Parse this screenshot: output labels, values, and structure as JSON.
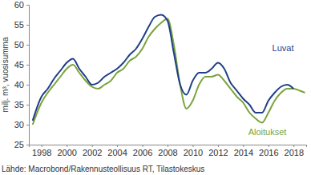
{
  "chart_data": {
    "type": "line",
    "y_label": "milj. m³, vuosisumma",
    "source": "Lähde: Macrobond/Rakennusteollisuus RT, Tilastokeskus",
    "x": [
      1997.3,
      1998,
      1998.5,
      1999,
      1999.5,
      2000,
      2000.5,
      2001,
      2001.5,
      2002,
      2002.5,
      2003,
      2003.5,
      2004,
      2004.5,
      2005,
      2005.5,
      2006,
      2006.5,
      2007,
      2007.5,
      2008,
      2008.5,
      2009,
      2009.5,
      2010,
      2010.5,
      2011,
      2011.5,
      2012,
      2012.5,
      2013,
      2013.5,
      2014,
      2014.5,
      2015,
      2015.5,
      2016,
      2016.5,
      2017,
      2017.5,
      2018,
      2018.5,
      2018.9
    ],
    "series": [
      {
        "name": "Luvat",
        "color": "#1f3f86",
        "values": [
          31,
          37,
          39,
          41.5,
          43.5,
          45.5,
          46.5,
          44,
          42,
          40,
          40.5,
          42,
          43,
          44,
          45.5,
          47.5,
          49,
          51.5,
          54.5,
          57,
          57.5,
          56,
          48,
          40,
          37.5,
          41,
          43,
          43,
          44,
          45.5,
          44,
          40.5,
          38.5,
          36.5,
          35,
          33,
          33,
          36,
          38,
          39.5,
          40,
          39,
          null,
          null
        ]
      },
      {
        "name": "Aloitukset",
        "color": "#7aa33c",
        "values": [
          30,
          35.5,
          38,
          40,
          42,
          44,
          45,
          43,
          41,
          39.5,
          39,
          40,
          41,
          43,
          44,
          46,
          47,
          49,
          52,
          54,
          55.5,
          56.5,
          50,
          40,
          34,
          36,
          40,
          42,
          42,
          42.5,
          41,
          39,
          37,
          35.5,
          33,
          31.5,
          30.5,
          33,
          36,
          38,
          39,
          39,
          38.5,
          38
        ]
      }
    ],
    "xlim": [
      1997,
      2019
    ],
    "xticks": [
      1998,
      2000,
      2002,
      2004,
      2006,
      2008,
      2010,
      2012,
      2014,
      2016,
      2018
    ],
    "ylim": [
      25,
      60
    ],
    "yticks": [
      25,
      30,
      35,
      40,
      45,
      50,
      55,
      60
    ],
    "grid": false
  }
}
